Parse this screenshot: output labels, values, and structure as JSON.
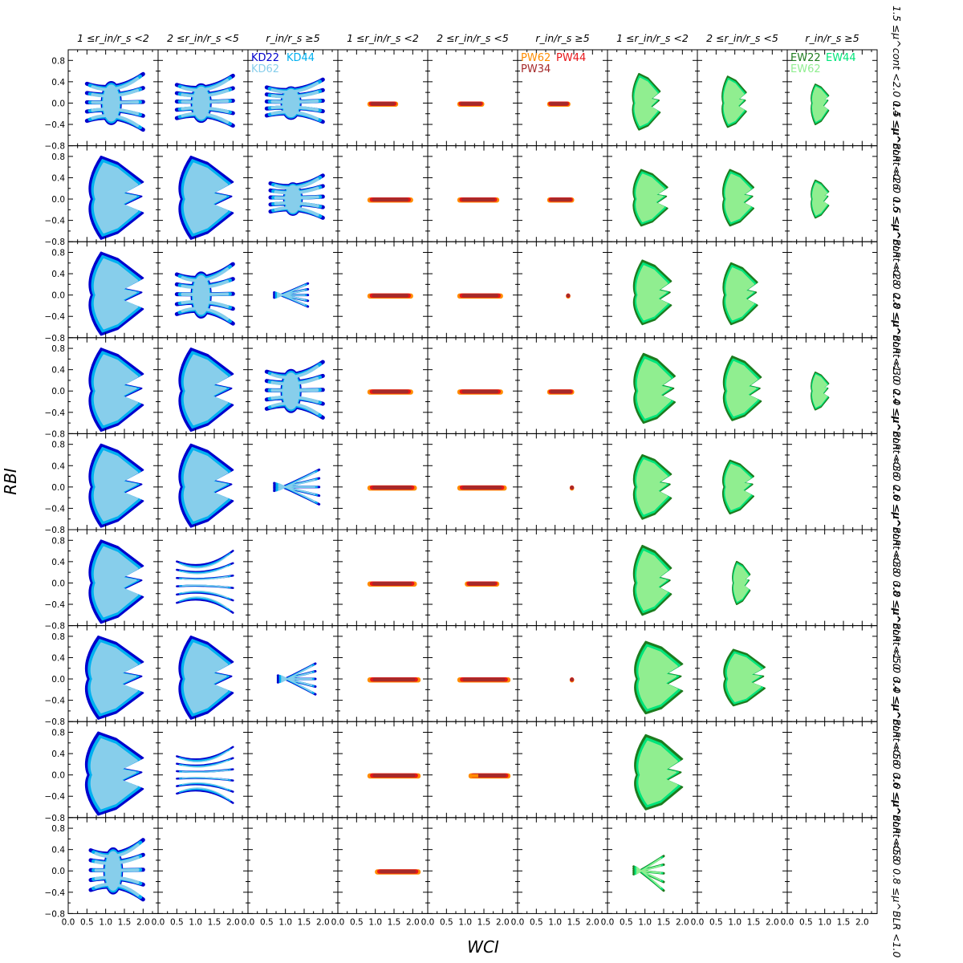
{
  "chart_data": {
    "type": "scatter",
    "xlabel": "WCI",
    "ylabel": "RBI",
    "xlim": [
      0.0,
      2.4
    ],
    "ylim": [
      -0.8,
      1.0
    ],
    "x_ticks": [
      "0.0",
      "0.5",
      "1.0",
      "1.5",
      "2.0"
    ],
    "y_ticks": [
      "0.8",
      "0.4",
      "0.0",
      "−0.4",
      "−0.8"
    ],
    "columns": [
      "1 ≤r_in/r_s <2",
      "2 ≤r_in/r_s <5",
      "r_in/r_s ≥5",
      "1 ≤r_in/r_s <2",
      "2 ≤r_in/r_s <5",
      "r_in/r_s ≥5",
      "1 ≤r_in/r_s <2",
      "2 ≤r_in/r_s <5",
      "r_in/r_s ≥5"
    ],
    "rows": [
      "1.5 ≤μ^cont <2.0  0.4 ≤μ^BLR <0.6",
      "1.5 ≤μ^cont <2.0  0.6 ≤μ^BLR <0.8",
      "1.5 ≤μ^cont <2.0  0.8 ≤μ^BLR <1.0",
      "2.0 ≤μ^cont <3.0  0.4 ≤μ^BLR <0.6",
      "2.0 ≤μ^cont <3.0  0.6 ≤μ^BLR <0.8",
      "2.0 ≤μ^cont <3.0  0.8 ≤μ^BLR <1.0",
      "3.0 ≤μ^cont <5.0  0.4 ≤μ^BLR <0.6",
      "3.0 ≤μ^cont <5.0  0.6 ≤μ^BLR <0.8",
      "3.0 ≤μ^cont <5.0  0.8 ≤μ^BLR <1.0"
    ],
    "groups": [
      {
        "model": "KD",
        "columns": [
          0,
          1,
          2
        ],
        "series": [
          {
            "name": "KD22",
            "color": "#0000cd"
          },
          {
            "name": "KD44",
            "color": "#00b0f0"
          },
          {
            "name": "KD62",
            "color": "#87ceeb"
          }
        ]
      },
      {
        "model": "PW",
        "columns": [
          3,
          4,
          5
        ],
        "series": [
          {
            "name": "PW62",
            "color": "#ff8c00"
          },
          {
            "name": "PW44",
            "color": "#e8161a"
          },
          {
            "name": "PW34",
            "color": "#a52a2a"
          }
        ]
      },
      {
        "model": "EW",
        "columns": [
          6,
          7,
          8
        ],
        "series": [
          {
            "name": "EW22",
            "color": "#1e7b1e"
          },
          {
            "name": "EW44",
            "color": "#00e57a"
          },
          {
            "name": "EW62",
            "color": "#90ee90"
          }
        ]
      }
    ],
    "cells": [
      [
        {
          "x": [
            0.5,
            2.0
          ],
          "y": [
            -0.7,
            0.75
          ],
          "s": "wing"
        },
        {
          "x": [
            0.5,
            2.0
          ],
          "y": [
            -0.6,
            0.7
          ],
          "s": "wing"
        },
        {
          "x": [
            0.5,
            2.0
          ],
          "y": [
            -0.5,
            0.6
          ],
          "s": "wing"
        },
        {
          "x": [
            0.8,
            1.6
          ],
          "y": [
            -0.01,
            0.01
          ],
          "s": "line"
        },
        {
          "x": [
            0.8,
            1.5
          ],
          "y": [
            -0.01,
            0.01
          ],
          "s": "line"
        },
        {
          "x": [
            0.8,
            1.4
          ],
          "y": [
            -0.01,
            0.01
          ],
          "s": "line"
        },
        {
          "x": [
            0.6,
            1.4
          ],
          "y": [
            -0.5,
            0.55
          ],
          "s": "blob"
        },
        {
          "x": [
            0.6,
            1.3
          ],
          "y": [
            -0.45,
            0.5
          ],
          "s": "blob"
        },
        {
          "x": [
            0.6,
            1.1
          ],
          "y": [
            -0.4,
            0.35
          ],
          "s": "blob"
        }
      ],
      [
        {
          "x": [
            0.5,
            2.0
          ],
          "y": [
            -0.75,
            0.8
          ],
          "s": "fill"
        },
        {
          "x": [
            0.5,
            2.0
          ],
          "y": [
            -0.75,
            0.8
          ],
          "s": "fill"
        },
        {
          "x": [
            0.6,
            2.0
          ],
          "y": [
            -0.5,
            0.6
          ],
          "s": "wing"
        },
        {
          "x": [
            0.8,
            2.0
          ],
          "y": [
            -0.01,
            0.01
          ],
          "s": "line"
        },
        {
          "x": [
            0.8,
            1.9
          ],
          "y": [
            -0.01,
            0.01
          ],
          "s": "line"
        },
        {
          "x": [
            0.8,
            1.5
          ],
          "y": [
            -0.01,
            0.01
          ],
          "s": "line"
        },
        {
          "x": [
            0.6,
            1.6
          ],
          "y": [
            -0.5,
            0.55
          ],
          "s": "blob"
        },
        {
          "x": [
            0.6,
            1.5
          ],
          "y": [
            -0.5,
            0.55
          ],
          "s": "blob"
        },
        {
          "x": [
            0.6,
            1.1
          ],
          "y": [
            -0.35,
            0.35
          ],
          "s": "blob"
        }
      ],
      [
        {
          "x": [
            0.5,
            2.0
          ],
          "y": [
            -0.75,
            0.8
          ],
          "s": "fill"
        },
        {
          "x": [
            0.5,
            2.0
          ],
          "y": [
            -0.75,
            0.8
          ],
          "s": "wing"
        },
        {
          "x": [
            0.7,
            1.6
          ],
          "y": [
            -0.3,
            0.3
          ],
          "s": "chev"
        },
        {
          "x": [
            0.8,
            2.0
          ],
          "y": [
            -0.01,
            0.01
          ],
          "s": "line"
        },
        {
          "x": [
            0.8,
            2.0
          ],
          "y": [
            -0.01,
            0.01
          ],
          "s": "line"
        },
        {
          "x": [
            1.3,
            1.4
          ],
          "y": [
            -0.01,
            0.01
          ],
          "s": "dot"
        },
        {
          "x": [
            0.6,
            1.7
          ],
          "y": [
            -0.55,
            0.65
          ],
          "s": "blob"
        },
        {
          "x": [
            0.6,
            1.6
          ],
          "y": [
            -0.55,
            0.6
          ],
          "s": "blob"
        },
        null
      ],
      [
        {
          "x": [
            0.5,
            2.0
          ],
          "y": [
            -0.75,
            0.8
          ],
          "s": "fill"
        },
        {
          "x": [
            0.5,
            2.0
          ],
          "y": [
            -0.75,
            0.8
          ],
          "s": "fill"
        },
        {
          "x": [
            0.5,
            2.0
          ],
          "y": [
            -0.7,
            0.75
          ],
          "s": "wing"
        },
        {
          "x": [
            0.8,
            2.0
          ],
          "y": [
            -0.01,
            0.01
          ],
          "s": "line"
        },
        {
          "x": [
            0.8,
            2.0
          ],
          "y": [
            -0.01,
            0.01
          ],
          "s": "line"
        },
        {
          "x": [
            0.8,
            1.5
          ],
          "y": [
            -0.01,
            0.01
          ],
          "s": "line"
        },
        {
          "x": [
            0.6,
            1.8
          ],
          "y": [
            -0.6,
            0.7
          ],
          "s": "blob"
        },
        {
          "x": [
            0.6,
            1.7
          ],
          "y": [
            -0.55,
            0.65
          ],
          "s": "blob"
        },
        {
          "x": [
            0.6,
            1.1
          ],
          "y": [
            -0.35,
            0.35
          ],
          "s": "blob"
        }
      ],
      [
        {
          "x": [
            0.5,
            2.0
          ],
          "y": [
            -0.75,
            0.8
          ],
          "s": "fill"
        },
        {
          "x": [
            0.5,
            2.0
          ],
          "y": [
            -0.75,
            0.8
          ],
          "s": "fill"
        },
        {
          "x": [
            0.7,
            1.9
          ],
          "y": [
            -0.45,
            0.45
          ],
          "s": "chev"
        },
        {
          "x": [
            0.8,
            2.1
          ],
          "y": [
            -0.01,
            0.01
          ],
          "s": "line"
        },
        {
          "x": [
            0.8,
            2.1
          ],
          "y": [
            -0.01,
            0.01
          ],
          "s": "line"
        },
        {
          "x": [
            1.4,
            1.5
          ],
          "y": [
            -0.01,
            0.01
          ],
          "s": "dot"
        },
        {
          "x": [
            0.6,
            1.7
          ],
          "y": [
            -0.6,
            0.6
          ],
          "s": "blob"
        },
        {
          "x": [
            0.6,
            1.5
          ],
          "y": [
            -0.5,
            0.5
          ],
          "s": "blob"
        },
        null
      ],
      [
        {
          "x": [
            0.5,
            2.0
          ],
          "y": [
            -0.75,
            0.8
          ],
          "s": "fill"
        },
        {
          "x": [
            0.5,
            2.0
          ],
          "y": [
            -0.75,
            0.8
          ],
          "s": "sparse"
        },
        null,
        {
          "x": [
            0.8,
            2.1
          ],
          "y": [
            -0.01,
            0.01
          ],
          "s": "line"
        },
        {
          "x": [
            1.0,
            1.9
          ],
          "y": [
            -0.01,
            0.01
          ],
          "s": "line"
        },
        null,
        {
          "x": [
            0.6,
            1.7
          ],
          "y": [
            -0.6,
            0.7
          ],
          "s": "blob"
        },
        {
          "x": [
            0.9,
            1.4
          ],
          "y": [
            -0.4,
            0.4
          ],
          "s": "blob"
        },
        null
      ],
      [
        {
          "x": [
            0.4,
            2.0
          ],
          "y": [
            -0.75,
            0.8
          ],
          "s": "fill"
        },
        {
          "x": [
            0.5,
            2.0
          ],
          "y": [
            -0.75,
            0.8
          ],
          "s": "fill"
        },
        {
          "x": [
            0.8,
            1.8
          ],
          "y": [
            -0.4,
            0.4
          ],
          "s": "chev"
        },
        {
          "x": [
            0.8,
            2.2
          ],
          "y": [
            -0.01,
            0.01
          ],
          "s": "line"
        },
        {
          "x": [
            0.8,
            2.2
          ],
          "y": [
            -0.01,
            0.01
          ],
          "s": "line"
        },
        {
          "x": [
            1.4,
            1.5
          ],
          "y": [
            -0.01,
            0.01
          ],
          "s": "dot"
        },
        {
          "x": [
            0.6,
            2.0
          ],
          "y": [
            -0.65,
            0.7
          ],
          "s": "blob"
        },
        {
          "x": [
            0.6,
            1.8
          ],
          "y": [
            -0.5,
            0.55
          ],
          "s": "blob"
        },
        null
      ],
      [
        {
          "x": [
            0.4,
            2.0
          ],
          "y": [
            -0.75,
            0.8
          ],
          "s": "fill"
        },
        {
          "x": [
            0.5,
            2.0
          ],
          "y": [
            -0.7,
            0.7
          ],
          "s": "sparse"
        },
        null,
        {
          "x": [
            0.8,
            2.2
          ],
          "y": [
            -0.01,
            0.01
          ],
          "s": "line"
        },
        {
          "x": [
            1.1,
            2.2
          ],
          "y": [
            -0.01,
            0.01
          ],
          "s": "line"
        },
        null,
        {
          "x": [
            0.6,
            2.0
          ],
          "y": [
            -0.65,
            0.75
          ],
          "s": "blob"
        },
        null,
        null
      ],
      [
        {
          "x": [
            0.6,
            2.0
          ],
          "y": [
            -0.75,
            0.8
          ],
          "s": "wing"
        },
        null,
        null,
        {
          "x": [
            1.0,
            2.2
          ],
          "y": [
            -0.01,
            0.01
          ],
          "s": "line"
        },
        null,
        null,
        {
          "x": [
            0.7,
            1.5
          ],
          "y": [
            -0.5,
            0.4
          ],
          "s": "chev"
        },
        null,
        null
      ]
    ]
  }
}
